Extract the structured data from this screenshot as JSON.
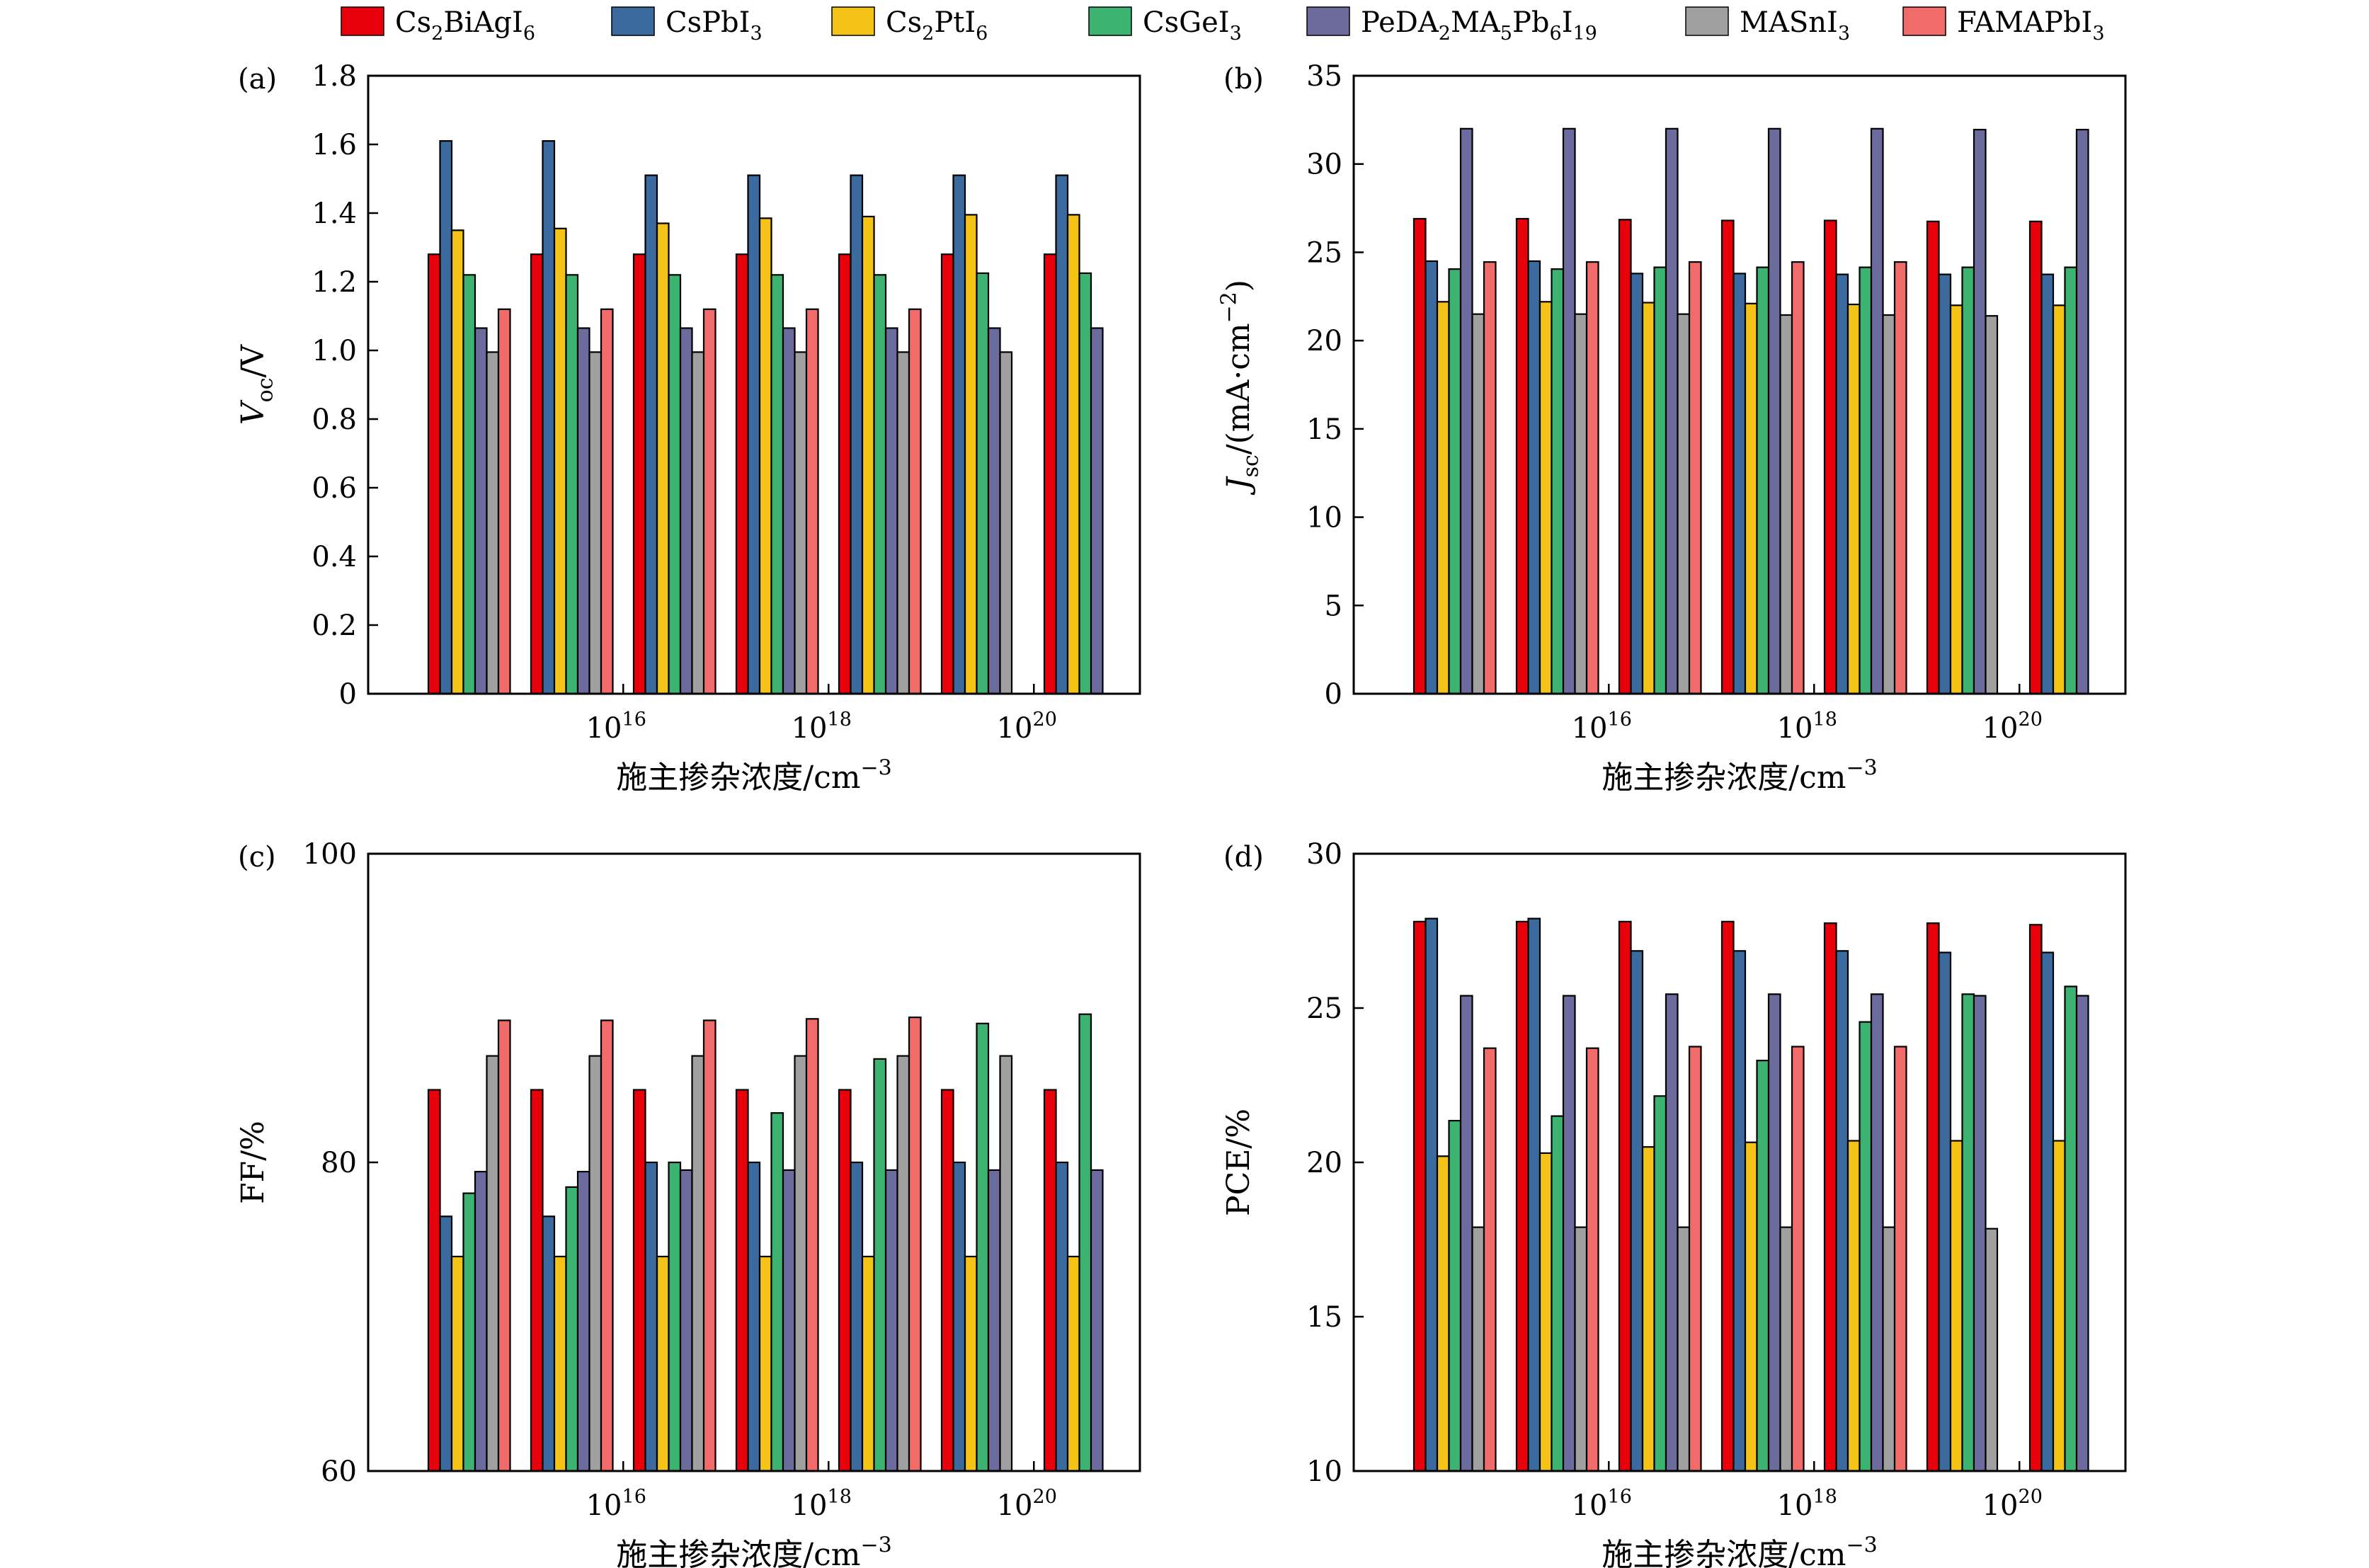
{
  "legend": {
    "position": "top",
    "items": [
      {
        "series": 0,
        "base": "Cs",
        "parts": [
          [
            "Cs",
            ""
          ],
          [
            "2",
            "sub"
          ],
          [
            "BiAgI",
            ""
          ],
          [
            "6",
            "sub"
          ]
        ]
      },
      {
        "series": 1,
        "base": "CsPbI",
        "parts": [
          [
            "CsPbI",
            ""
          ],
          [
            "3",
            "sub"
          ]
        ]
      },
      {
        "series": 2,
        "base": "Cs",
        "parts": [
          [
            "Cs",
            ""
          ],
          [
            "2",
            "sub"
          ],
          [
            "PtI",
            ""
          ],
          [
            "6",
            "sub"
          ]
        ]
      },
      {
        "series": 3,
        "base": "CsGeI",
        "parts": [
          [
            "CsGeI",
            ""
          ],
          [
            "3",
            "sub"
          ]
        ]
      },
      {
        "series": 4,
        "base": "PeDA",
        "parts": [
          [
            "PeDA",
            ""
          ],
          [
            "2",
            "sub"
          ],
          [
            "MA",
            ""
          ],
          [
            "5",
            "sub"
          ],
          [
            "Pb",
            ""
          ],
          [
            "6",
            "sub"
          ],
          [
            "I",
            ""
          ],
          [
            "19",
            "sub"
          ]
        ]
      },
      {
        "series": 5,
        "base": "MASnI",
        "parts": [
          [
            "MASnI",
            ""
          ],
          [
            "3",
            "sub"
          ]
        ]
      },
      {
        "series": 6,
        "base": "FAMAPbI",
        "parts": [
          [
            "FAMAPbI",
            ""
          ],
          [
            "3",
            "sub"
          ]
        ]
      }
    ]
  },
  "series_colors": [
    "#e8000b",
    "#3a6a9e",
    "#f5c218",
    "#3cb371",
    "#6b6b9e",
    "#a0a0a0",
    "#f26b6b"
  ],
  "chart_data": [
    {
      "type": "bar",
      "panel": "(a)",
      "ylabel_parts": [
        [
          "V",
          "i"
        ],
        [
          "oc",
          "sub"
        ],
        [
          "/V",
          ""
        ]
      ],
      "xlabel_parts": [
        [
          "施主掺杂浓度/cm",
          ""
        ],
        [
          "−3",
          "sup"
        ]
      ],
      "ylim": [
        0,
        1.8
      ],
      "yticks": [
        0,
        0.2,
        0.4,
        0.6,
        0.8,
        1.0,
        1.2,
        1.4,
        1.6,
        1.8
      ],
      "ytick_labels": [
        "0",
        "0.2",
        "0.4",
        "0.6",
        "0.8",
        "1.0",
        "1.2",
        "1.4",
        "1.6",
        "1.8"
      ],
      "xtick_labels": [
        {
          "pos": 1.5,
          "base": "10",
          "exp": "16"
        },
        {
          "pos": 3.5,
          "base": "10",
          "exp": "18"
        },
        {
          "pos": 5.5,
          "base": "10",
          "exp": "20"
        }
      ],
      "groups": 7,
      "series": [
        {
          "values": [
            1.28,
            1.28,
            1.28,
            1.28,
            1.28,
            1.28,
            1.28
          ]
        },
        {
          "values": [
            1.61,
            1.61,
            1.51,
            1.51,
            1.51,
            1.51,
            1.51
          ]
        },
        {
          "values": [
            1.35,
            1.355,
            1.37,
            1.385,
            1.39,
            1.395,
            1.395
          ]
        },
        {
          "values": [
            1.22,
            1.22,
            1.22,
            1.22,
            1.22,
            1.225,
            1.225
          ]
        },
        {
          "values": [
            1.065,
            1.065,
            1.065,
            1.065,
            1.065,
            1.065,
            1.065
          ]
        },
        {
          "values": [
            0.995,
            0.995,
            0.995,
            0.995,
            0.995,
            0.995,
            null
          ]
        },
        {
          "values": [
            1.12,
            1.12,
            1.12,
            1.12,
            1.12,
            null,
            null
          ]
        }
      ]
    },
    {
      "type": "bar",
      "panel": "(b)",
      "ylabel_parts": [
        [
          "J",
          "i"
        ],
        [
          "sc",
          "sub"
        ],
        [
          "/(mA·cm",
          ""
        ],
        [
          "−2",
          "sup"
        ],
        [
          ")",
          ""
        ]
      ],
      "xlabel_parts": [
        [
          "施主掺杂浓度/cm",
          ""
        ],
        [
          "−3",
          "sup"
        ]
      ],
      "ylim": [
        0,
        35
      ],
      "yticks": [
        0,
        5,
        10,
        15,
        20,
        25,
        30,
        35
      ],
      "ytick_labels": [
        "0",
        "5",
        "10",
        "15",
        "20",
        "25",
        "30",
        "35"
      ],
      "xtick_labels": [
        {
          "pos": 1.5,
          "base": "10",
          "exp": "16"
        },
        {
          "pos": 3.5,
          "base": "10",
          "exp": "18"
        },
        {
          "pos": 5.5,
          "base": "10",
          "exp": "20"
        }
      ],
      "groups": 7,
      "series": [
        {
          "values": [
            26.9,
            26.9,
            26.85,
            26.8,
            26.8,
            26.75,
            26.75
          ]
        },
        {
          "values": [
            24.5,
            24.5,
            23.8,
            23.8,
            23.75,
            23.75,
            23.75
          ]
        },
        {
          "values": [
            22.2,
            22.2,
            22.15,
            22.1,
            22.05,
            22.0,
            22.0
          ]
        },
        {
          "values": [
            24.05,
            24.05,
            24.15,
            24.15,
            24.15,
            24.15,
            24.15
          ]
        },
        {
          "values": [
            32.0,
            32.0,
            32.0,
            32.0,
            32.0,
            31.95,
            31.95
          ]
        },
        {
          "values": [
            21.5,
            21.5,
            21.5,
            21.45,
            21.45,
            21.4,
            null
          ]
        },
        {
          "values": [
            24.45,
            24.45,
            24.45,
            24.45,
            24.45,
            null,
            null
          ]
        }
      ]
    },
    {
      "type": "bar",
      "panel": "(c)",
      "ylabel_parts": [
        [
          "FF/%",
          ""
        ]
      ],
      "xlabel_parts": [
        [
          "施主掺杂浓度/cm",
          ""
        ],
        [
          "−3",
          "sup"
        ]
      ],
      "ylim": [
        60,
        100
      ],
      "yticks": [
        60,
        80,
        100
      ],
      "ytick_labels": [
        "60",
        "80",
        "100"
      ],
      "xtick_labels": [
        {
          "pos": 1.5,
          "base": "10",
          "exp": "16"
        },
        {
          "pos": 3.5,
          "base": "10",
          "exp": "18"
        },
        {
          "pos": 5.5,
          "base": "10",
          "exp": "20"
        }
      ],
      "groups": 7,
      "series": [
        {
          "values": [
            84.7,
            84.7,
            84.7,
            84.7,
            84.7,
            84.7,
            84.7
          ]
        },
        {
          "values": [
            76.5,
            76.5,
            80.0,
            80.0,
            80.0,
            80.0,
            80.0
          ]
        },
        {
          "values": [
            73.9,
            73.9,
            73.9,
            73.9,
            73.9,
            73.9,
            73.9
          ]
        },
        {
          "values": [
            78.0,
            78.4,
            80.0,
            83.2,
            86.7,
            89.0,
            89.6
          ]
        },
        {
          "values": [
            79.4,
            79.4,
            79.5,
            79.5,
            79.5,
            79.5,
            79.5
          ]
        },
        {
          "values": [
            86.9,
            86.9,
            86.9,
            86.9,
            86.9,
            86.9,
            null
          ]
        },
        {
          "values": [
            89.2,
            89.2,
            89.2,
            89.3,
            89.4,
            null,
            null
          ]
        }
      ]
    },
    {
      "type": "bar",
      "panel": "(d)",
      "ylabel_parts": [
        [
          "PCE/%",
          ""
        ]
      ],
      "xlabel_parts": [
        [
          "施主掺杂浓度/cm",
          ""
        ],
        [
          "−3",
          "sup"
        ]
      ],
      "ylim": [
        10,
        30
      ],
      "yticks": [
        10,
        15,
        20,
        25,
        30
      ],
      "ytick_labels": [
        "10",
        "15",
        "20",
        "25",
        "30"
      ],
      "xtick_labels": [
        {
          "pos": 1.5,
          "base": "10",
          "exp": "16"
        },
        {
          "pos": 3.5,
          "base": "10",
          "exp": "18"
        },
        {
          "pos": 5.5,
          "base": "10",
          "exp": "20"
        }
      ],
      "groups": 7,
      "series": [
        {
          "values": [
            27.8,
            27.8,
            27.8,
            27.8,
            27.75,
            27.75,
            27.7
          ]
        },
        {
          "values": [
            27.9,
            27.9,
            26.85,
            26.85,
            26.85,
            26.8,
            26.8
          ]
        },
        {
          "values": [
            20.2,
            20.3,
            20.5,
            20.65,
            20.7,
            20.7,
            20.7
          ]
        },
        {
          "values": [
            21.35,
            21.5,
            22.15,
            23.3,
            24.55,
            25.45,
            25.7
          ]
        },
        {
          "values": [
            25.4,
            25.4,
            25.45,
            25.45,
            25.45,
            25.4,
            25.4
          ]
        },
        {
          "values": [
            17.9,
            17.9,
            17.9,
            17.9,
            17.9,
            17.85,
            null
          ]
        },
        {
          "values": [
            23.7,
            23.7,
            23.75,
            23.75,
            23.75,
            null,
            null
          ]
        }
      ]
    }
  ]
}
